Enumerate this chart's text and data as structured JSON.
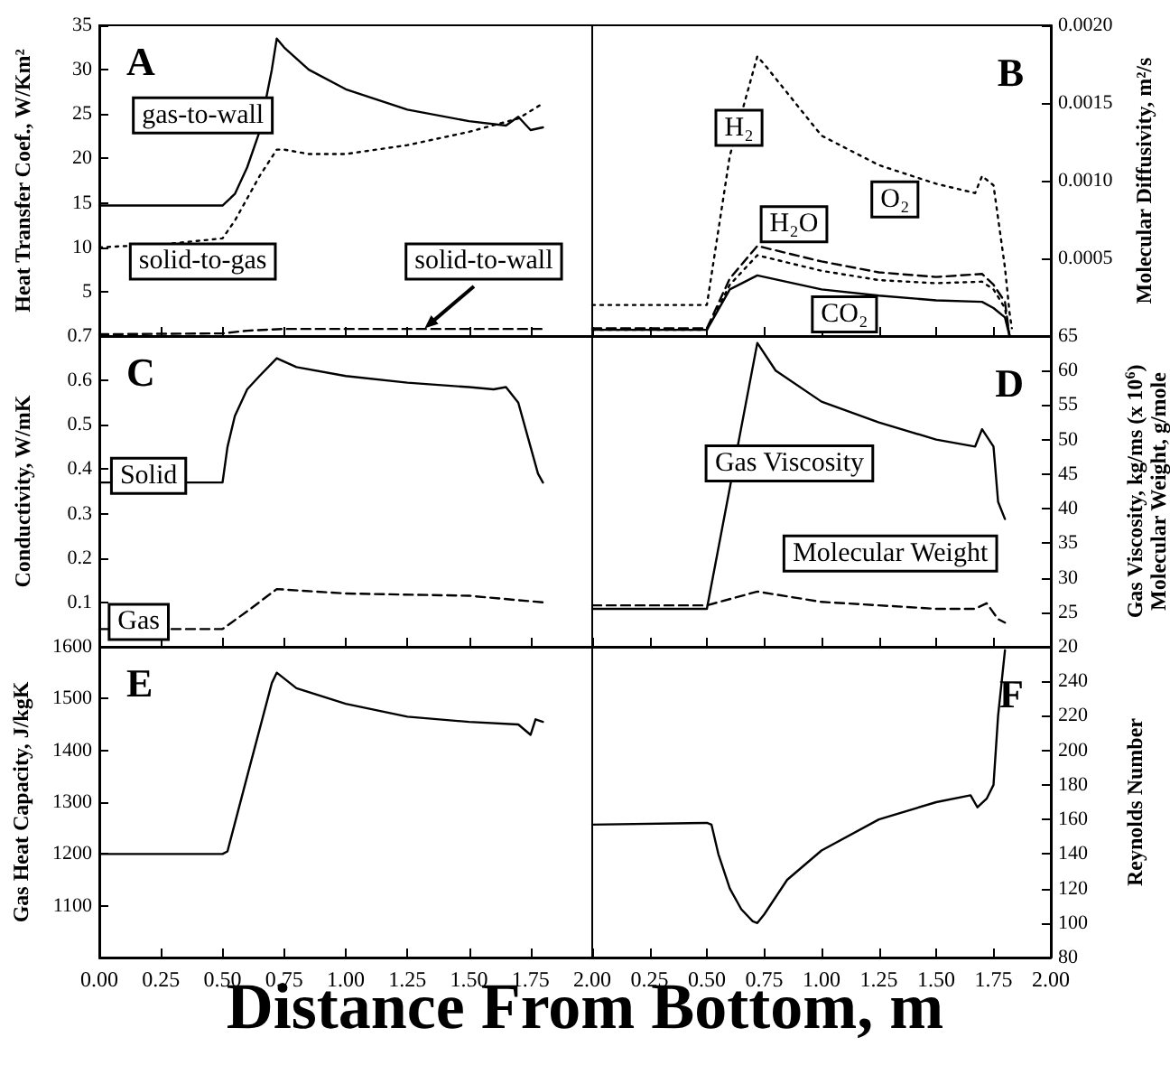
{
  "chart_data": [
    {
      "type": "line",
      "title": "A",
      "ylabel": "Heat Transfer Coef., W/Km²",
      "xlim": [
        0,
        2
      ],
      "xticks": [
        {
          "value": 0,
          "label": null
        },
        {
          "value": 0.25,
          "label": null
        },
        {
          "value": 0.5,
          "label": null
        },
        {
          "value": 0.75,
          "label": null
        },
        {
          "value": 1,
          "label": null
        },
        {
          "value": 1.25,
          "label": null
        },
        {
          "value": 1.5,
          "label": null
        },
        {
          "value": 1.75,
          "label": null
        },
        {
          "value": 2,
          "label": null
        }
      ],
      "ylim": [
        0,
        35
      ],
      "yticks": [
        {
          "value": 0,
          "label": null
        },
        5,
        10,
        15,
        20,
        25,
        30,
        35
      ],
      "tick_labels": "y",
      "legend": false,
      "grid": false,
      "marker": "none",
      "series": [
        {
          "name": "gas-to-wall",
          "color": "#000000",
          "line_style": "solid",
          "x": [
            0,
            0.5,
            0.55,
            0.6,
            0.65,
            0.7,
            0.72,
            0.75,
            0.85,
            1.0,
            1.25,
            1.5,
            1.65,
            1.7,
            1.75,
            1.8
          ],
          "values": [
            14.7,
            14.7,
            16,
            19,
            23,
            30,
            33.5,
            32.5,
            30,
            27.8,
            25.5,
            24.2,
            23.7,
            24.7,
            23.2,
            23.5
          ]
        },
        {
          "name": "solid-to-gas",
          "color": "#000000",
          "line_style": "dotted",
          "x": [
            0,
            0.25,
            0.5,
            0.55,
            0.65,
            0.72,
            0.75,
            0.85,
            1.0,
            1.25,
            1.5,
            1.7,
            1.8
          ],
          "values": [
            10,
            10.3,
            11,
            13,
            18,
            21,
            21,
            20.5,
            20.5,
            21.5,
            23,
            24.5,
            26.2
          ]
        },
        {
          "name": "solid-to-wall",
          "color": "#000000",
          "line_style": "dashed",
          "x": [
            0,
            0.5,
            0.6,
            0.75,
            1.0,
            1.5,
            1.8
          ],
          "values": [
            0.2,
            0.3,
            0.6,
            0.8,
            0.8,
            0.8,
            0.8
          ]
        }
      ]
    },
    {
      "type": "line",
      "title": "B",
      "ylabel": "Molecular Diffusivity, m²/s",
      "xlim": [
        0,
        2
      ],
      "xticks": [
        {
          "value": 0,
          "label": null
        },
        {
          "value": 0.25,
          "label": null
        },
        {
          "value": 0.5,
          "label": null
        },
        {
          "value": 0.75,
          "label": null
        },
        {
          "value": 1,
          "label": null
        },
        {
          "value": 1.25,
          "label": null
        },
        {
          "value": 1.5,
          "label": null
        },
        {
          "value": 1.75,
          "label": null
        },
        {
          "value": 2,
          "label": null
        }
      ],
      "ylim": [
        0,
        0.002
      ],
      "yticks": [
        {
          "value": 0,
          "label": null
        },
        {
          "value": 0.0005,
          "label": "0.0005"
        },
        {
          "value": 0.001,
          "label": "0.0010"
        },
        {
          "value": 0.0015,
          "label": "0.0015"
        },
        {
          "value": 0.002,
          "label": "0.0020"
        }
      ],
      "tick_labels": "y",
      "legend": false,
      "grid": false,
      "marker": "none",
      "series": [
        {
          "name": "H₂",
          "color": "#000000",
          "line_style": "dotted",
          "x": [
            0,
            0.5,
            0.6,
            0.72,
            0.75,
            1.0,
            1.25,
            1.5,
            1.67,
            1.7,
            1.75,
            1.8,
            1.82,
            1.83
          ],
          "values": [
            0.0002,
            0.0002,
            0.00116,
            0.0018,
            0.00175,
            0.00129,
            0.0011,
            0.00098,
            0.00092,
            0.00103,
            0.00097,
            0.00044,
            0.00015,
            5e-05
          ]
        },
        {
          "name": "H₂O",
          "color": "#000000",
          "line_style": "dashed",
          "x": [
            0,
            0.5,
            0.6,
            0.72,
            1.0,
            1.25,
            1.5,
            1.7,
            1.75,
            1.8,
            1.82
          ],
          "values": [
            5e-05,
            5e-05,
            0.00037,
            0.00058,
            0.00048,
            0.00041,
            0.00038,
            0.0004,
            0.00033,
            0.00022,
            0
          ]
        },
        {
          "name": "O₂",
          "color": "#000000",
          "line_style": "dotted",
          "x": [
            0,
            0.5,
            0.6,
            0.72,
            1.0,
            1.25,
            1.5,
            1.7,
            1.75,
            1.8,
            1.82
          ],
          "values": [
            4e-05,
            4e-05,
            0.00033,
            0.00052,
            0.00042,
            0.00036,
            0.00034,
            0.00035,
            0.0003,
            0.00018,
            0
          ]
        },
        {
          "name": "CO₂",
          "color": "#000000",
          "line_style": "solid",
          "x": [
            0,
            0.5,
            0.6,
            0.72,
            1.0,
            1.25,
            1.5,
            1.7,
            1.75,
            1.8,
            1.82
          ],
          "values": [
            4e-05,
            4e-05,
            0.0003,
            0.00039,
            0.0003,
            0.00026,
            0.00023,
            0.00022,
            0.00018,
            0.00012,
            0
          ]
        }
      ]
    },
    {
      "type": "line",
      "title": "C",
      "ylabel": "Conductivity, W/mK",
      "xlim": [
        0,
        2
      ],
      "xticks": [
        {
          "value": 0,
          "label": null
        },
        {
          "value": 0.25,
          "label": null
        },
        {
          "value": 0.5,
          "label": null
        },
        {
          "value": 0.75,
          "label": null
        },
        {
          "value": 1,
          "label": null
        },
        {
          "value": 1.25,
          "label": null
        },
        {
          "value": 1.5,
          "label": null
        },
        {
          "value": 1.75,
          "label": null
        },
        {
          "value": 2,
          "label": null
        }
      ],
      "ylim": [
        0,
        0.7
      ],
      "yticks": [
        {
          "value": 0,
          "label": null
        },
        0.1,
        0.2,
        0.3,
        0.4,
        0.5,
        0.6,
        0.7
      ],
      "tick_labels": "y",
      "legend": false,
      "grid": false,
      "marker": "none",
      "series": [
        {
          "name": "Solid",
          "color": "#000000",
          "line_style": "solid",
          "x": [
            0,
            0.5,
            0.52,
            0.55,
            0.6,
            0.65,
            0.72,
            0.8,
            1.0,
            1.25,
            1.5,
            1.6,
            1.65,
            1.7,
            1.75,
            1.78,
            1.8
          ],
          "values": [
            0.37,
            0.37,
            0.45,
            0.52,
            0.58,
            0.61,
            0.65,
            0.63,
            0.61,
            0.595,
            0.585,
            0.58,
            0.585,
            0.55,
            0.45,
            0.39,
            0.37
          ]
        },
        {
          "name": "Gas",
          "color": "#000000",
          "line_style": "dashed",
          "x": [
            0,
            0.5,
            0.6,
            0.72,
            1.0,
            1.5,
            1.8
          ],
          "values": [
            0.04,
            0.04,
            0.08,
            0.13,
            0.12,
            0.115,
            0.1
          ]
        }
      ]
    },
    {
      "type": "line",
      "title": "D",
      "ylabel": "Gas Viscosity, kg/ms (x 10$^{6}$)\nMolecular Weight, g/mole",
      "xlim": [
        0,
        2
      ],
      "xticks": [
        {
          "value": 0,
          "label": null
        },
        {
          "value": 0.25,
          "label": null
        },
        {
          "value": 0.5,
          "label": null
        },
        {
          "value": 0.75,
          "label": null
        },
        {
          "value": 1,
          "label": null
        },
        {
          "value": 1.25,
          "label": null
        },
        {
          "value": 1.5,
          "label": null
        },
        {
          "value": 1.75,
          "label": null
        },
        {
          "value": 2,
          "label": null
        }
      ],
      "ylim": [
        20,
        65
      ],
      "yticks": [
        20,
        25,
        30,
        35,
        40,
        45,
        50,
        55,
        60,
        65
      ],
      "tick_labels": "y",
      "legend": false,
      "grid": false,
      "marker": "none",
      "series": [
        {
          "name": "Gas Viscosity",
          "color": "#000000",
          "line_style": "solid",
          "x": [
            0,
            0.25,
            0.5,
            0.72,
            0.8,
            1.0,
            1.25,
            1.5,
            1.67,
            1.7,
            1.75,
            1.77,
            1.8
          ],
          "values": [
            25.5,
            25.5,
            25.5,
            64,
            60,
            55.5,
            52.5,
            50,
            49,
            51.5,
            49,
            41,
            38.5
          ]
        },
        {
          "name": "Molecular Weight",
          "color": "#000000",
          "line_style": "dashed",
          "x": [
            0,
            0.5,
            0.72,
            1.0,
            1.25,
            1.5,
            1.67,
            1.72,
            1.77,
            1.8
          ],
          "values": [
            26,
            26,
            28,
            26.5,
            26,
            25.5,
            25.5,
            26.3,
            24,
            23.5
          ]
        }
      ]
    },
    {
      "type": "line",
      "title": "E",
      "ylabel": "Gas Heat Capacity, J/kgK",
      "xlabel": "Distance From Bottom, m",
      "xlim": [
        0,
        2
      ],
      "xticks": [
        {
          "value": 0,
          "label": "0.00"
        },
        {
          "value": 0.25,
          "label": "0.25"
        },
        {
          "value": 0.5,
          "label": "0.50"
        },
        {
          "value": 0.75,
          "label": "0.75"
        },
        {
          "value": 1,
          "label": "1.00"
        },
        {
          "value": 1.25,
          "label": "1.25"
        },
        {
          "value": 1.5,
          "label": "1.50"
        },
        {
          "value": 1.75,
          "label": "1.75"
        },
        {
          "value": 2,
          "label": "2.00"
        }
      ],
      "ylim": [
        1000,
        1600
      ],
      "yticks": [
        {
          "value": 1000,
          "label": null
        },
        1100,
        1200,
        1300,
        1400,
        1500,
        1600
      ],
      "legend": false,
      "grid": false,
      "marker": "none",
      "series": [
        {
          "color": "#000000",
          "line_style": "solid",
          "x": [
            0,
            0.5,
            0.52,
            0.6,
            0.7,
            0.72,
            0.8,
            1.0,
            1.25,
            1.5,
            1.7,
            1.75,
            1.77,
            1.8
          ],
          "values": [
            1200,
            1200,
            1205,
            1350,
            1530,
            1550,
            1520,
            1490,
            1465,
            1455,
            1450,
            1430,
            1460,
            1455
          ]
        }
      ]
    },
    {
      "type": "line",
      "title": "F",
      "ylabel": "Reynolds Number",
      "xlim": [
        0,
        2
      ],
      "xticks": [
        {
          "value": 0,
          "label": null
        },
        {
          "value": 0.25,
          "label": "0.25"
        },
        {
          "value": 0.5,
          "label": "0.50"
        },
        {
          "value": 0.75,
          "label": "0.75"
        },
        {
          "value": 1,
          "label": "1.00"
        },
        {
          "value": 1.25,
          "label": "1.25"
        },
        {
          "value": 1.5,
          "label": "1.50"
        },
        {
          "value": 1.75,
          "label": "1.75"
        },
        {
          "value": 2,
          "label": "2.00"
        }
      ],
      "ylim": [
        80,
        260
      ],
      "yticks": [
        80,
        100,
        120,
        140,
        160,
        180,
        200,
        220,
        240
      ],
      "legend": false,
      "grid": false,
      "marker": "none",
      "series": [
        {
          "color": "#000000",
          "line_style": "solid",
          "x": [
            0,
            0.5,
            0.52,
            0.55,
            0.6,
            0.65,
            0.7,
            0.72,
            0.75,
            0.85,
            1.0,
            1.25,
            1.5,
            1.65,
            1.68,
            1.72,
            1.75,
            1.77,
            1.8
          ],
          "values": [
            157,
            158,
            157,
            140,
            120,
            108,
            101,
            100,
            105,
            125,
            142,
            160,
            170,
            174,
            167,
            172,
            180,
            220,
            258
          ]
        }
      ]
    }
  ]
}
